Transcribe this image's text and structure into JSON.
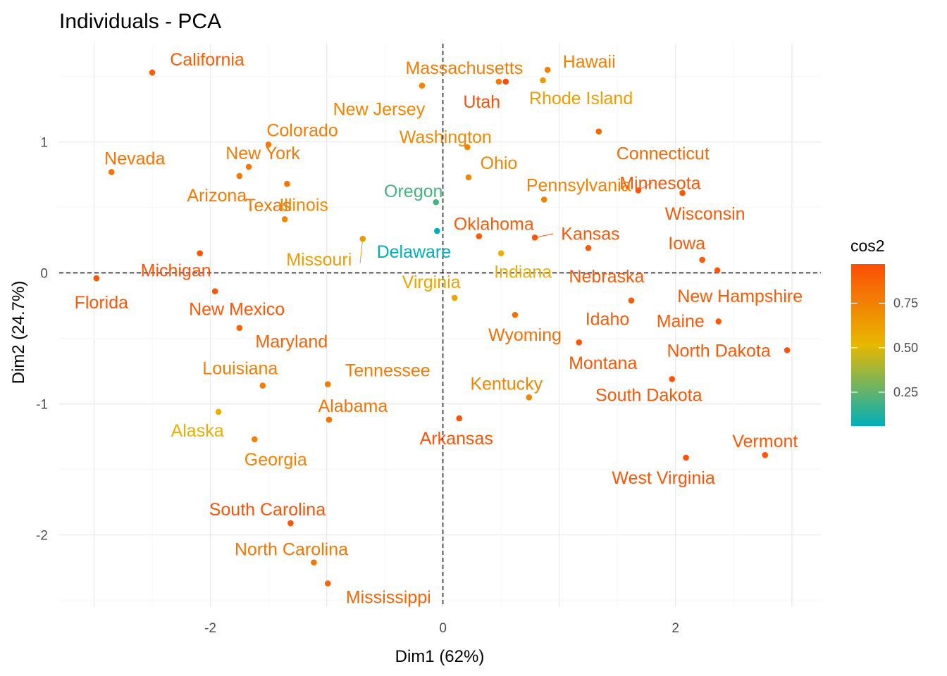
{
  "chart_data": {
    "type": "scatter",
    "title": "Individuals - PCA",
    "xlabel": "Dim1 (62%)",
    "ylabel": "Dim2 (24.7%)",
    "xlim": [
      -3.3,
      3.25
    ],
    "ylim": [
      -2.55,
      1.75
    ],
    "x_ticks": [
      -2,
      0,
      2
    ],
    "y_ticks": [
      -2,
      -1,
      0,
      1
    ],
    "x_tick_labels": [
      "-2",
      "0",
      "2"
    ],
    "y_tick_labels": [
      "-2",
      "-1",
      "0",
      "1"
    ],
    "reference_lines": {
      "x": 0,
      "y": 0
    },
    "grid": true,
    "legend": {
      "title": "cos2",
      "position": "right",
      "ticks": [
        0.25,
        0.5,
        0.75
      ],
      "tick_labels": [
        "0.25",
        "0.50",
        "0.75"
      ],
      "range": [
        0.06,
        0.97
      ],
      "colors": [
        "#00AFBB",
        "#E7B800",
        "#FC4E07"
      ]
    },
    "points": [
      {
        "name": "Alabama",
        "x": -0.98,
        "y": -1.12,
        "cos2": 0.81
      },
      {
        "name": "Alaska",
        "x": -1.93,
        "y": -1.06,
        "cos2": 0.55
      },
      {
        "name": "Arizona",
        "x": -1.75,
        "y": 0.74,
        "cos2": 0.78
      },
      {
        "name": "Arkansas",
        "x": 0.14,
        "y": -1.11,
        "cos2": 0.95
      },
      {
        "name": "California",
        "x": -2.5,
        "y": 1.53,
        "cos2": 0.9
      },
      {
        "name": "Colorado",
        "x": -1.5,
        "y": 0.98,
        "cos2": 0.77
      },
      {
        "name": "Connecticut",
        "x": 1.34,
        "y": 1.08,
        "cos2": 0.86
      },
      {
        "name": "Delaware",
        "x": -0.05,
        "y": 0.32,
        "cos2": 0.06
      },
      {
        "name": "Florida",
        "x": -2.98,
        "y": -0.04,
        "cos2": 0.94
      },
      {
        "name": "Georgia",
        "x": -1.62,
        "y": -1.27,
        "cos2": 0.75
      },
      {
        "name": "Hawaii",
        "x": 0.9,
        "y": 1.55,
        "cos2": 0.76
      },
      {
        "name": "Idaho",
        "x": 1.62,
        "y": -0.21,
        "cos2": 0.91
      },
      {
        "name": "Illinois",
        "x": -1.36,
        "y": 0.41,
        "cos2": 0.72
      },
      {
        "name": "Indiana",
        "x": 0.5,
        "y": 0.15,
        "cos2": 0.55
      },
      {
        "name": "Iowa",
        "x": 2.23,
        "y": 0.1,
        "cos2": 0.92
      },
      {
        "name": "Kansas",
        "x": 0.79,
        "y": 0.27,
        "cos2": 0.93
      },
      {
        "name": "Kentucky",
        "x": 0.74,
        "y": -0.95,
        "cos2": 0.74
      },
      {
        "name": "Louisiana",
        "x": -1.55,
        "y": -0.86,
        "cos2": 0.77
      },
      {
        "name": "Maine",
        "x": 2.37,
        "y": -0.37,
        "cos2": 0.92
      },
      {
        "name": "Maryland",
        "x": -1.75,
        "y": -0.42,
        "cos2": 0.88
      },
      {
        "name": "Massachusetts",
        "x": 0.48,
        "y": 1.46,
        "cos2": 0.78
      },
      {
        "name": "Michigan",
        "x": -2.09,
        "y": 0.15,
        "cos2": 0.95
      },
      {
        "name": "Minnesota",
        "x": 1.68,
        "y": 0.63,
        "cos2": 0.93
      },
      {
        "name": "Mississippi",
        "x": -0.99,
        "y": -2.37,
        "cos2": 0.87
      },
      {
        "name": "Missouri",
        "x": -0.69,
        "y": 0.26,
        "cos2": 0.64
      },
      {
        "name": "Montana",
        "x": 1.17,
        "y": -0.53,
        "cos2": 0.93
      },
      {
        "name": "Nebraska",
        "x": 1.25,
        "y": 0.19,
        "cos2": 0.92
      },
      {
        "name": "Nevada",
        "x": -2.85,
        "y": 0.77,
        "cos2": 0.81
      },
      {
        "name": "New Hampshire",
        "x": 2.36,
        "y": 0.02,
        "cos2": 0.92
      },
      {
        "name": "New Jersey",
        "x": -0.18,
        "y": 1.43,
        "cos2": 0.74
      },
      {
        "name": "New Mexico",
        "x": -1.96,
        "y": -0.14,
        "cos2": 0.93
      },
      {
        "name": "New York",
        "x": -1.67,
        "y": 0.81,
        "cos2": 0.79
      },
      {
        "name": "North Carolina",
        "x": -1.11,
        "y": -2.21,
        "cos2": 0.8
      },
      {
        "name": "North Dakota",
        "x": 2.96,
        "y": -0.59,
        "cos2": 0.93
      },
      {
        "name": "Ohio",
        "x": 0.22,
        "y": 0.73,
        "cos2": 0.72
      },
      {
        "name": "Oklahoma",
        "x": 0.31,
        "y": 0.28,
        "cos2": 0.92
      },
      {
        "name": "Oregon",
        "x": -0.06,
        "y": 0.54,
        "cos2": 0.2
      },
      {
        "name": "Pennsylvania",
        "x": 0.87,
        "y": 0.56,
        "cos2": 0.75
      },
      {
        "name": "Rhode Island",
        "x": 0.86,
        "y": 1.47,
        "cos2": 0.63
      },
      {
        "name": "South Carolina",
        "x": -1.31,
        "y": -1.91,
        "cos2": 0.95
      },
      {
        "name": "South Dakota",
        "x": 1.97,
        "y": -0.81,
        "cos2": 0.93
      },
      {
        "name": "Tennessee",
        "x": -0.99,
        "y": -0.85,
        "cos2": 0.78
      },
      {
        "name": "Texas",
        "x": -1.34,
        "y": 0.68,
        "cos2": 0.8
      },
      {
        "name": "Utah",
        "x": 0.54,
        "y": 1.46,
        "cos2": 0.97
      },
      {
        "name": "Vermont",
        "x": 2.77,
        "y": -1.39,
        "cos2": 0.93
      },
      {
        "name": "Virginia",
        "x": 0.1,
        "y": -0.19,
        "cos2": 0.6
      },
      {
        "name": "Washington",
        "x": 0.21,
        "y": 0.96,
        "cos2": 0.72
      },
      {
        "name": "West Virginia",
        "x": 2.09,
        "y": -1.41,
        "cos2": 0.94
      },
      {
        "name": "Wisconsin",
        "x": 2.06,
        "y": 0.61,
        "cos2": 0.92
      },
      {
        "name": "Wyoming",
        "x": 0.62,
        "y": -0.32,
        "cos2": 0.83
      }
    ]
  }
}
